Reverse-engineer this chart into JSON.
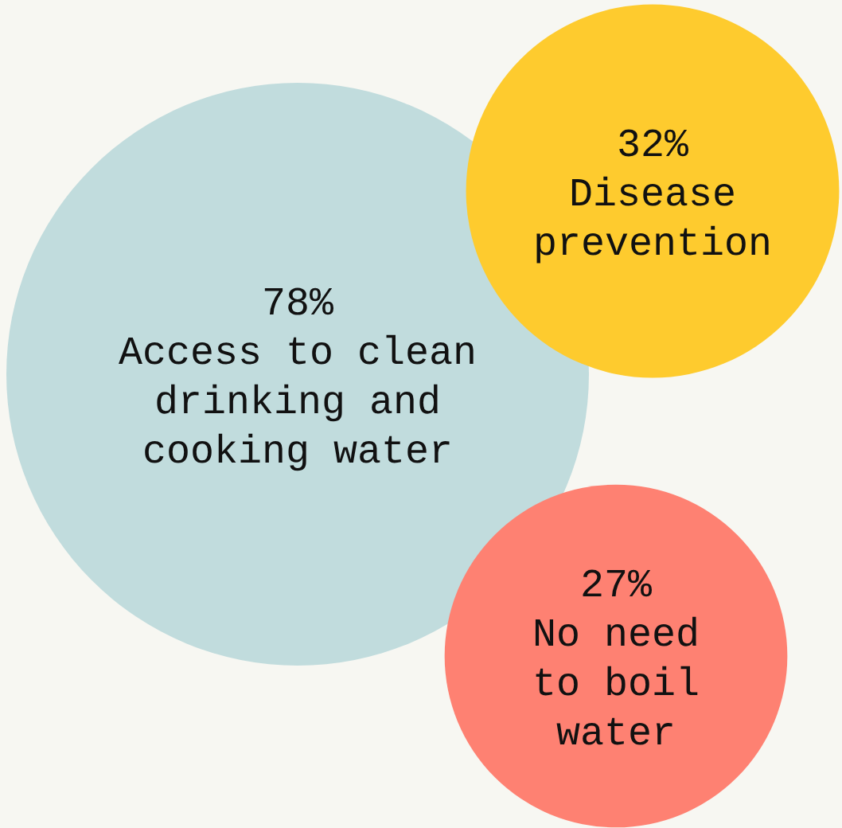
{
  "chart_data": {
    "type": "other",
    "categories": [
      "Access to clean drinking and cooking water",
      "Disease prevention",
      "No need to boil water"
    ],
    "values": [
      78,
      32,
      27
    ],
    "value_labels": [
      "78%",
      "32%",
      "27%"
    ],
    "colors": [
      "#c1dcdd",
      "#fecb2e",
      "#fe8172"
    ]
  }
}
